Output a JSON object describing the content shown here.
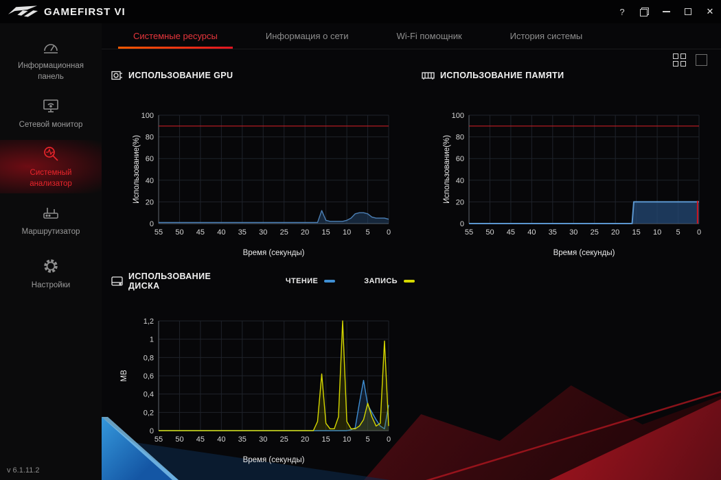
{
  "window": {
    "app_title": "GAMEFIRST VI",
    "version": "v 6.1.11.2",
    "titlebar": {
      "help_label": "?",
      "close_glyph": "✕"
    }
  },
  "sidebar": {
    "items": [
      {
        "label": "Информационная панель",
        "active": false
      },
      {
        "label": "Сетевой монитор",
        "active": false
      },
      {
        "label": "Системный анализатор",
        "active": true
      },
      {
        "label": "Маршрутизатор",
        "active": false
      },
      {
        "label": "Настройки",
        "active": false
      }
    ]
  },
  "tabs": [
    {
      "label": "Системные ресурсы",
      "active": true
    },
    {
      "label": "Информация о сети",
      "active": false
    },
    {
      "label": "Wi-Fi помощник",
      "active": false
    },
    {
      "label": "История системы",
      "active": false
    }
  ],
  "colors": {
    "accent_red": "#e01a22",
    "chart_blue": "#4c80b6",
    "chart_yellow": "#d6d800",
    "threshold_red": "#c41e25"
  },
  "chart_data": [
    {
      "id": "gpu",
      "type": "area",
      "title": "ИСПОЛЬЗОВАНИЕ GPU",
      "xlabel": "Время (секунды)",
      "ylabel": "Использование(%)",
      "xlim": [
        55,
        0
      ],
      "ylim": [
        0,
        100
      ],
      "xticks": [
        55,
        50,
        45,
        40,
        35,
        30,
        25,
        20,
        15,
        10,
        5,
        0
      ],
      "yticks": [
        0,
        20,
        40,
        60,
        80,
        100
      ],
      "threshold": {
        "y": 90,
        "color": "#c41e25"
      },
      "grid": true,
      "series": [
        {
          "name": "GPU",
          "color": "#4c80b6",
          "fill": "rgba(38,72,110,0.5)",
          "width": 1.4,
          "points": [
            [
              55,
              1
            ],
            [
              40,
              1
            ],
            [
              30,
              1
            ],
            [
              20,
              1
            ],
            [
              17,
              1
            ],
            [
              16,
              12
            ],
            [
              15,
              3
            ],
            [
              14,
              2
            ],
            [
              13,
              2
            ],
            [
              12,
              2
            ],
            [
              11,
              2
            ],
            [
              10,
              3
            ],
            [
              9,
              5
            ],
            [
              8,
              9
            ],
            [
              7,
              10
            ],
            [
              6,
              10
            ],
            [
              5,
              9
            ],
            [
              4,
              6
            ],
            [
              3,
              5
            ],
            [
              2,
              5
            ],
            [
              1,
              5
            ],
            [
              0,
              4
            ]
          ]
        }
      ]
    },
    {
      "id": "memory",
      "type": "area",
      "title": "ИСПОЛЬЗОВАНИЕ ПАМЯТИ",
      "xlabel": "Время (секунды)",
      "ylabel": "Использование(%)",
      "xlim": [
        55,
        0
      ],
      "ylim": [
        0,
        100
      ],
      "xticks": [
        55,
        50,
        45,
        40,
        35,
        30,
        25,
        20,
        15,
        10,
        5,
        0
      ],
      "yticks": [
        0,
        20,
        40,
        60,
        80,
        100
      ],
      "threshold": {
        "y": 90,
        "color": "#c41e25"
      },
      "grid": true,
      "marker": {
        "x": 0.35,
        "y": 21,
        "color": "#d0161f"
      },
      "series": [
        {
          "name": "Память",
          "color": "#5b96cf",
          "fill": "rgba(36,74,118,0.75)",
          "width": 2,
          "points": [
            [
              55,
              0
            ],
            [
              17,
              0
            ],
            [
              16,
              0
            ],
            [
              15.6,
              20
            ],
            [
              12,
              20
            ],
            [
              8,
              20
            ],
            [
              4,
              20
            ],
            [
              0,
              20
            ]
          ]
        }
      ]
    },
    {
      "id": "disk",
      "type": "line",
      "title": "ИСПОЛЬЗОВАНИЕ ДИСКА",
      "xlabel": "Время (секунды)",
      "ylabel": "MB",
      "xlim": [
        55,
        0
      ],
      "ylim": [
        0,
        1.2
      ],
      "xticks": [
        55,
        50,
        45,
        40,
        35,
        30,
        25,
        20,
        15,
        10,
        5,
        0
      ],
      "yticks": [
        0,
        0.2,
        0.4,
        0.6,
        0.8,
        1,
        1.2
      ],
      "ytick_labels": [
        "0",
        "0,2",
        "0,4",
        "0,6",
        "0,8",
        "1",
        "1,2"
      ],
      "grid": true,
      "legend": [
        {
          "label": "ЧТЕНИЕ",
          "color": "#3f8fd4"
        },
        {
          "label": "ЗАПИСЬ",
          "color": "#d6d800"
        }
      ],
      "series": [
        {
          "name": "ЧТЕНИЕ",
          "color": "#3f8fd4",
          "fill": "rgba(40,80,130,0.3)",
          "width": 1.4,
          "points": [
            [
              55,
              0
            ],
            [
              20,
              0
            ],
            [
              10,
              0
            ],
            [
              9,
              0.01
            ],
            [
              8,
              0.03
            ],
            [
              7,
              0.3
            ],
            [
              6,
              0.55
            ],
            [
              5,
              0.28
            ],
            [
              4,
              0.2
            ],
            [
              3,
              0.12
            ],
            [
              2,
              0.05
            ],
            [
              1,
              0.02
            ],
            [
              0,
              0.28
            ]
          ]
        },
        {
          "name": "ЗАПИСЬ",
          "color": "#d6d800",
          "fill": "rgba(120,120,0,0.25)",
          "width": 1.4,
          "points": [
            [
              55,
              0
            ],
            [
              25,
              0
            ],
            [
              18,
              0
            ],
            [
              17,
              0.1
            ],
            [
              16,
              0.62
            ],
            [
              15,
              0.08
            ],
            [
              14,
              0.02
            ],
            [
              13,
              0.02
            ],
            [
              12,
              0.15
            ],
            [
              11,
              1.2
            ],
            [
              10,
              0.1
            ],
            [
              9,
              0.02
            ],
            [
              8,
              0.02
            ],
            [
              7,
              0.05
            ],
            [
              6,
              0.12
            ],
            [
              5,
              0.3
            ],
            [
              4,
              0.15
            ],
            [
              3,
              0.05
            ],
            [
              2,
              0.08
            ],
            [
              1,
              0.98
            ],
            [
              0,
              0.05
            ]
          ]
        }
      ]
    }
  ]
}
